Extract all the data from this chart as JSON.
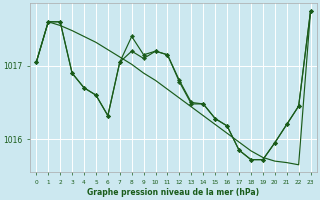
{
  "bg_color": "#cce8f0",
  "grid_color": "#ffffff",
  "line_color": "#1a5c1a",
  "title": "Graphe pression niveau de la mer (hPa)",
  "xlim": [
    -0.5,
    23.5
  ],
  "ylim": [
    1015.55,
    1017.85
  ],
  "yticks": [
    1016,
    1017
  ],
  "xticks": [
    0,
    1,
    2,
    3,
    4,
    5,
    6,
    7,
    8,
    9,
    10,
    11,
    12,
    13,
    14,
    15,
    16,
    17,
    18,
    19,
    20,
    21,
    22,
    23
  ],
  "s1": [
    1017.05,
    1017.6,
    1017.6,
    1016.9,
    1016.7,
    1016.6,
    1016.32,
    1017.05,
    1017.4,
    1017.15,
    1017.2,
    1017.15,
    1016.8,
    1016.5,
    1016.48,
    1016.28,
    1016.18,
    1015.85,
    1015.72,
    1015.72,
    1015.95,
    1016.2,
    1016.45,
    1017.75
  ],
  "s2": [
    1017.05,
    1017.6,
    1017.6,
    1016.9,
    1016.7,
    1016.6,
    1016.32,
    1017.05,
    1017.2,
    1017.1,
    1017.2,
    1017.15,
    1016.78,
    1016.48,
    1016.48,
    1016.28,
    1016.18,
    1015.85,
    1015.72,
    1015.72,
    1015.95,
    1016.2,
    1016.45,
    1017.75
  ],
  "s3": [
    1017.05,
    1017.6,
    1017.55,
    1017.48,
    1017.4,
    1017.32,
    1017.22,
    1017.12,
    1017.02,
    1016.9,
    1016.8,
    1016.68,
    1016.56,
    1016.44,
    1016.32,
    1016.2,
    1016.08,
    1015.96,
    1015.84,
    1015.75,
    1015.7,
    1015.68,
    1015.65,
    1017.75
  ]
}
